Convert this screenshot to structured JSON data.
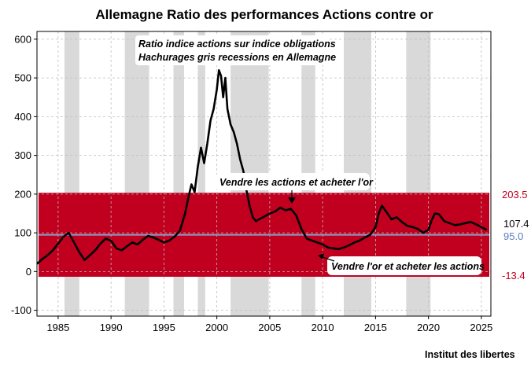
{
  "chart_data": {
    "type": "line",
    "title": "Allemagne Ratio des performances Actions contre or",
    "xlabel": "",
    "ylabel": "",
    "xlim": [
      1983.0,
      2025.9
    ],
    "ylim": [
      -115,
      620
    ],
    "x_ticks": [
      "1985",
      "1990",
      "1995",
      "2000",
      "2005",
      "2010",
      "2015",
      "2020",
      "2025"
    ],
    "y_ticks": [
      "600",
      "500",
      "400",
      "300",
      "200",
      "100",
      "0",
      "-100"
    ],
    "grid": true,
    "annotations": {
      "note_line1": "Ratio indice actions sur indice obligations",
      "note_line2": "Hachurages gris recessions en Allemagne",
      "sell": "Vendre les actions et acheter  l'or",
      "buy": "Vendre  l'or et acheter les actions"
    },
    "band": {
      "upper": 203.5,
      "lower": -13.4,
      "color": "#c0001e",
      "upper_label": "203.5",
      "lower_label": "-13.4"
    },
    "mean": {
      "value": 95.0,
      "label": "95.0",
      "color": "#8aa0cc"
    },
    "last": {
      "value": 107.4,
      "label": "107.4"
    },
    "recessions": [
      [
        1985.6,
        1987.0
      ],
      [
        1991.3,
        1993.6
      ],
      [
        1995.9,
        1996.9
      ],
      [
        1998.2,
        1998.9
      ],
      [
        2001.3,
        2004.9
      ],
      [
        2008.0,
        2009.3
      ],
      [
        2012.0,
        2014.6
      ],
      [
        2017.9,
        2020.2
      ]
    ],
    "series": [
      {
        "color": "#000000",
        "x": [
          1983.0,
          1983.5,
          1984.0,
          1984.5,
          1985.0,
          1985.5,
          1986.0,
          1986.5,
          1987.0,
          1987.5,
          1988.0,
          1988.5,
          1989.0,
          1989.5,
          1990.0,
          1990.5,
          1991.0,
          1991.5,
          1992.0,
          1992.5,
          1993.0,
          1993.5,
          1994.0,
          1994.5,
          1995.0,
          1995.5,
          1996.0,
          1996.5,
          1997.0,
          1997.3,
          1997.6,
          1997.9,
          1998.2,
          1998.5,
          1998.8,
          1999.1,
          1999.4,
          1999.7,
          2000.0,
          2000.2,
          2000.4,
          2000.6,
          2000.8,
          2001.0,
          2001.3,
          2001.6,
          2001.9,
          2002.2,
          2002.5,
          2002.8,
          2003.1,
          2003.4,
          2003.7,
          2004.0,
          2004.5,
          2005.0,
          2005.5,
          2006.0,
          2006.5,
          2007.0,
          2007.5,
          2008.0,
          2008.5,
          2009.0,
          2009.5,
          2010.0,
          2010.5,
          2011.0,
          2011.5,
          2012.0,
          2012.5,
          2013.0,
          2013.5,
          2014.0,
          2014.5,
          2015.0,
          2015.3,
          2015.6,
          2016.0,
          2016.5,
          2017.0,
          2017.5,
          2018.0,
          2018.5,
          2019.0,
          2019.5,
          2020.0,
          2020.3,
          2020.6,
          2021.0,
          2021.5,
          2022.0,
          2022.5,
          2023.0,
          2023.5,
          2024.0,
          2024.5,
          2025.0,
          2025.5
        ],
        "y": [
          20,
          32,
          42,
          55,
          72,
          90,
          100,
          75,
          50,
          30,
          42,
          55,
          72,
          85,
          80,
          60,
          55,
          65,
          75,
          70,
          82,
          92,
          88,
          82,
          75,
          80,
          90,
          105,
          150,
          190,
          225,
          205,
          270,
          320,
          280,
          330,
          390,
          420,
          470,
          520,
          505,
          450,
          500,
          420,
          380,
          360,
          330,
          290,
          260,
          210,
          170,
          140,
          130,
          135,
          142,
          150,
          155,
          165,
          158,
          162,
          145,
          110,
          85,
          80,
          75,
          70,
          62,
          60,
          58,
          62,
          68,
          75,
          80,
          88,
          95,
          115,
          150,
          170,
          155,
          135,
          140,
          128,
          118,
          115,
          110,
          100,
          108,
          132,
          150,
          148,
          130,
          125,
          120,
          122,
          125,
          128,
          122,
          115,
          107.4
        ]
      }
    ]
  },
  "footer": {
    "credit": "Institut des libertes"
  }
}
